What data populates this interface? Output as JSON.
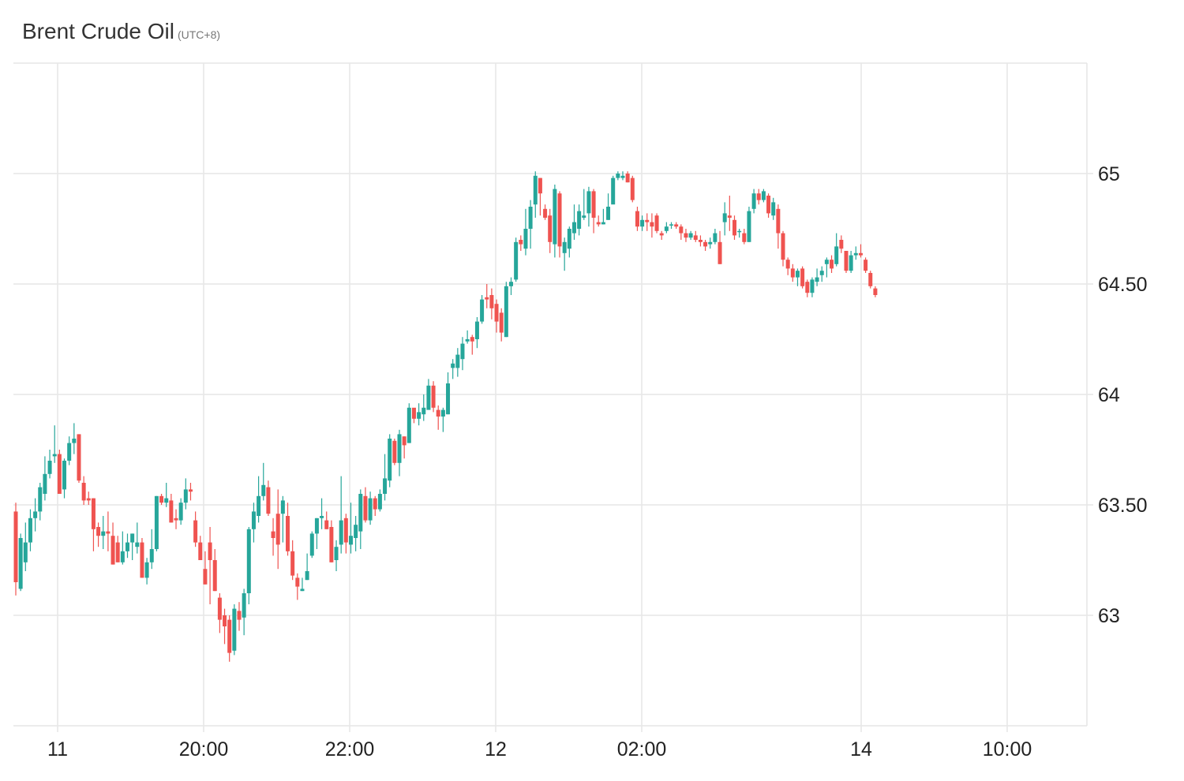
{
  "header": {
    "title": "Brent Crude Oil",
    "timezone": "(UTC+8)"
  },
  "colors": {
    "up": "#26a69a",
    "down": "#ef5350",
    "grid": "#e6e6e6",
    "text": "#222222"
  },
  "chart_data": {
    "type": "candlestick",
    "title": "Brent Crude Oil",
    "subtitle": "(UTC+8)",
    "xlabel": "",
    "ylabel": "",
    "y_ticks": [
      "63",
      "63.50",
      "64",
      "64.50",
      "65"
    ],
    "x_ticks": [
      "11",
      "20:00",
      "22:00",
      "12",
      "02:00",
      "14",
      "10:00"
    ],
    "ylim": [
      62.5,
      65.5
    ],
    "y_axis_position": "right",
    "grid": true,
    "candles": [
      [
        63.47,
        63.15,
        63.51,
        63.09
      ],
      [
        63.12,
        63.35,
        63.37,
        63.11
      ],
      [
        63.24,
        63.33,
        63.42,
        63.2
      ],
      [
        63.33,
        63.44,
        63.48,
        63.29
      ],
      [
        63.44,
        63.47,
        63.53,
        63.38
      ],
      [
        63.47,
        63.58,
        63.6,
        63.43
      ],
      [
        63.55,
        63.64,
        63.72,
        63.52
      ],
      [
        63.64,
        63.7,
        63.75,
        63.62
      ],
      [
        63.72,
        63.73,
        63.86,
        63.69
      ],
      [
        63.73,
        63.55,
        63.75,
        63.55
      ],
      [
        63.57,
        63.7,
        63.71,
        63.53
      ],
      [
        63.7,
        63.78,
        63.81,
        63.68
      ],
      [
        63.78,
        63.8,
        63.87,
        63.73
      ],
      [
        63.82,
        63.61,
        63.82,
        63.6
      ],
      [
        63.6,
        63.52,
        63.63,
        63.5
      ],
      [
        63.53,
        63.52,
        63.56,
        63.5
      ],
      [
        63.53,
        63.39,
        63.53,
        63.29
      ],
      [
        63.4,
        63.36,
        63.42,
        63.31
      ],
      [
        63.36,
        63.38,
        63.45,
        63.3
      ],
      [
        63.38,
        63.37,
        63.47,
        63.29
      ],
      [
        63.36,
        63.23,
        63.42,
        63.23
      ],
      [
        63.33,
        63.24,
        63.36,
        63.24
      ],
      [
        63.24,
        63.29,
        63.38,
        63.23
      ],
      [
        63.29,
        63.33,
        63.37,
        63.26
      ],
      [
        63.33,
        63.37,
        63.37,
        63.25
      ],
      [
        63.31,
        63.33,
        63.42,
        63.28
      ],
      [
        63.33,
        63.17,
        63.35,
        63.17
      ],
      [
        63.17,
        63.24,
        63.26,
        63.14
      ],
      [
        63.24,
        63.3,
        63.39,
        63.21
      ],
      [
        63.3,
        63.54,
        63.54,
        63.29
      ],
      [
        63.54,
        63.51,
        63.55,
        63.5
      ],
      [
        63.51,
        63.53,
        63.6,
        63.49
      ],
      [
        63.52,
        63.42,
        63.55,
        63.42
      ],
      [
        63.44,
        63.43,
        63.48,
        63.39
      ],
      [
        63.43,
        63.51,
        63.53,
        63.41
      ],
      [
        63.51,
        63.57,
        63.62,
        63.48
      ],
      [
        63.57,
        63.56,
        63.6,
        63.52
      ],
      [
        63.43,
        63.33,
        63.47,
        63.31
      ],
      [
        63.33,
        63.25,
        63.36,
        63.25
      ],
      [
        63.21,
        63.14,
        63.29,
        63.14
      ],
      [
        63.33,
        63.25,
        63.4,
        63.05
      ],
      [
        63.25,
        63.11,
        63.3,
        63.11
      ],
      [
        63.08,
        62.98,
        63.1,
        62.92
      ],
      [
        63.0,
        62.95,
        63.03,
        62.87
      ],
      [
        62.98,
        62.83,
        63.0,
        62.79
      ],
      [
        62.84,
        63.03,
        63.05,
        62.82
      ],
      [
        63.02,
        62.98,
        63.06,
        62.93
      ],
      [
        62.99,
        63.1,
        63.12,
        62.91
      ],
      [
        63.1,
        63.39,
        63.4,
        63.05
      ],
      [
        63.39,
        63.47,
        63.51,
        63.33
      ],
      [
        63.45,
        63.54,
        63.63,
        63.42
      ],
      [
        63.54,
        63.59,
        63.69,
        63.52
      ],
      [
        63.58,
        63.46,
        63.61,
        63.45
      ],
      [
        63.38,
        63.35,
        63.44,
        63.27
      ],
      [
        63.46,
        63.32,
        63.57,
        63.21
      ],
      [
        63.46,
        63.52,
        63.54,
        63.33
      ],
      [
        63.45,
        63.29,
        63.51,
        63.27
      ],
      [
        63.29,
        63.18,
        63.34,
        63.16
      ],
      [
        63.17,
        63.13,
        63.19,
        63.07
      ],
      [
        63.11,
        63.12,
        63.17,
        63.11
      ],
      [
        63.16,
        63.2,
        63.28,
        63.16
      ],
      [
        63.27,
        63.37,
        63.38,
        63.26
      ],
      [
        63.37,
        63.44,
        63.44,
        63.3
      ],
      [
        63.44,
        63.45,
        63.53,
        63.39
      ],
      [
        63.43,
        63.39,
        63.47,
        63.39
      ],
      [
        63.4,
        63.24,
        63.43,
        63.24
      ],
      [
        63.25,
        63.31,
        63.34,
        63.2
      ],
      [
        63.32,
        63.43,
        63.63,
        63.28
      ],
      [
        63.44,
        63.33,
        63.46,
        63.28
      ],
      [
        63.32,
        63.36,
        63.51,
        63.28
      ],
      [
        63.35,
        63.41,
        63.45,
        63.29
      ],
      [
        63.38,
        63.55,
        63.57,
        63.3
      ],
      [
        63.54,
        63.43,
        63.58,
        63.42
      ],
      [
        63.43,
        63.53,
        63.56,
        63.41
      ],
      [
        63.53,
        63.48,
        63.54,
        63.45
      ],
      [
        63.48,
        63.55,
        63.57,
        63.47
      ],
      [
        63.55,
        63.62,
        63.73,
        63.52
      ],
      [
        63.61,
        63.8,
        63.82,
        63.58
      ],
      [
        63.79,
        63.69,
        63.8,
        63.68
      ],
      [
        63.69,
        63.82,
        63.84,
        63.63
      ],
      [
        63.81,
        63.77,
        63.81,
        63.71
      ],
      [
        63.78,
        63.94,
        63.96,
        63.78
      ],
      [
        63.94,
        63.89,
        63.92,
        63.87
      ],
      [
        63.89,
        63.92,
        63.96,
        63.86
      ],
      [
        63.91,
        63.94,
        64.0,
        63.88
      ],
      [
        63.93,
        64.04,
        64.07,
        63.94
      ],
      [
        64.04,
        63.94,
        64.06,
        63.92
      ],
      [
        63.93,
        63.9,
        63.95,
        63.84
      ],
      [
        63.9,
        63.93,
        63.94,
        63.83
      ],
      [
        63.91,
        64.05,
        64.1,
        63.91
      ],
      [
        64.12,
        64.14,
        64.16,
        64.07
      ],
      [
        64.12,
        64.18,
        64.21,
        64.08
      ],
      [
        64.16,
        64.23,
        64.26,
        64.11
      ],
      [
        64.24,
        64.25,
        64.29,
        64.23
      ],
      [
        64.26,
        64.24,
        64.27,
        64.18
      ],
      [
        64.25,
        64.33,
        64.35,
        64.21
      ],
      [
        64.33,
        64.43,
        64.45,
        64.32
      ],
      [
        64.44,
        64.43,
        64.5,
        64.39
      ],
      [
        64.45,
        64.39,
        64.48,
        64.34
      ],
      [
        64.41,
        64.33,
        64.43,
        64.28
      ],
      [
        64.37,
        64.28,
        64.39,
        64.24
      ],
      [
        64.26,
        64.49,
        64.51,
        64.26
      ],
      [
        64.49,
        64.51,
        64.53,
        64.45
      ],
      [
        64.52,
        64.69,
        64.71,
        64.51
      ],
      [
        64.7,
        64.68,
        64.72,
        64.65
      ],
      [
        64.66,
        64.75,
        64.84,
        64.63
      ],
      [
        64.75,
        64.85,
        64.88,
        64.66
      ],
      [
        64.86,
        64.99,
        65.01,
        64.8
      ],
      [
        64.98,
        64.91,
        64.98,
        64.81
      ],
      [
        64.84,
        64.8,
        64.86,
        64.79
      ],
      [
        64.81,
        64.69,
        64.84,
        64.64
      ],
      [
        64.68,
        64.93,
        64.95,
        64.62
      ],
      [
        64.91,
        64.67,
        64.92,
        64.62
      ],
      [
        64.64,
        64.69,
        64.71,
        64.56
      ],
      [
        64.66,
        64.75,
        64.76,
        64.62
      ],
      [
        64.73,
        64.78,
        64.86,
        64.7
      ],
      [
        64.75,
        64.83,
        64.86,
        64.72
      ],
      [
        64.8,
        64.81,
        64.93,
        64.79
      ],
      [
        64.82,
        64.92,
        64.94,
        64.76
      ],
      [
        64.92,
        64.8,
        64.93,
        64.73
      ],
      [
        64.78,
        64.77,
        64.81,
        64.76
      ],
      [
        64.77,
        64.78,
        64.84,
        64.77
      ],
      [
        64.79,
        64.85,
        64.91,
        64.79
      ],
      [
        64.86,
        64.98,
        64.99,
        64.87
      ],
      [
        64.98,
        65.0,
        65.01,
        64.97
      ],
      [
        64.98,
        64.99,
        65.01,
        64.97
      ],
      [
        65.0,
        64.96,
        65.01,
        64.96
      ],
      [
        64.98,
        64.88,
        64.99,
        64.87
      ],
      [
        64.83,
        64.76,
        64.85,
        64.74
      ],
      [
        64.76,
        64.79,
        64.81,
        64.74
      ],
      [
        64.79,
        64.78,
        64.82,
        64.74
      ],
      [
        64.78,
        64.76,
        64.82,
        64.71
      ],
      [
        64.81,
        64.74,
        64.82,
        64.73
      ],
      [
        64.73,
        64.72,
        64.74,
        64.7
      ],
      [
        64.74,
        64.76,
        64.78,
        64.73
      ],
      [
        64.77,
        64.77,
        64.78,
        64.75
      ],
      [
        64.77,
        64.76,
        64.78,
        64.75
      ],
      [
        64.76,
        64.73,
        64.77,
        64.7
      ],
      [
        64.73,
        64.71,
        64.75,
        64.69
      ],
      [
        64.71,
        64.73,
        64.74,
        64.7
      ],
      [
        64.72,
        64.7,
        64.74,
        64.69
      ],
      [
        64.7,
        64.69,
        64.72,
        64.67
      ],
      [
        64.69,
        64.67,
        64.7,
        64.65
      ],
      [
        64.68,
        64.69,
        64.71,
        64.66
      ],
      [
        64.69,
        64.73,
        64.75,
        64.68
      ],
      [
        64.69,
        64.59,
        64.74,
        64.59
      ],
      [
        64.78,
        64.82,
        64.87,
        64.72
      ],
      [
        64.81,
        64.8,
        64.9,
        64.74
      ],
      [
        64.79,
        64.72,
        64.81,
        64.7
      ],
      [
        64.74,
        64.74,
        64.75,
        64.71
      ],
      [
        64.73,
        64.69,
        64.75,
        64.68
      ],
      [
        64.69,
        64.83,
        64.85,
        64.69
      ],
      [
        64.84,
        64.91,
        64.93,
        64.82
      ],
      [
        64.91,
        64.88,
        64.93,
        64.86
      ],
      [
        64.88,
        64.92,
        64.93,
        64.87
      ],
      [
        64.9,
        64.82,
        64.91,
        64.8
      ],
      [
        64.81,
        64.87,
        64.89,
        64.79
      ],
      [
        64.84,
        64.73,
        64.86,
        64.66
      ],
      [
        64.73,
        64.61,
        64.74,
        64.58
      ],
      [
        64.61,
        64.57,
        64.62,
        64.54
      ],
      [
        64.57,
        64.53,
        64.59,
        64.51
      ],
      [
        64.53,
        64.56,
        64.57,
        64.49
      ],
      [
        64.57,
        64.49,
        64.58,
        64.48
      ],
      [
        64.51,
        64.46,
        64.52,
        64.44
      ],
      [
        64.46,
        64.52,
        64.53,
        64.44
      ],
      [
        64.51,
        64.53,
        64.57,
        64.49
      ],
      [
        64.54,
        64.56,
        64.58,
        64.51
      ],
      [
        64.59,
        64.61,
        64.62,
        64.53
      ],
      [
        64.61,
        64.57,
        64.63,
        64.55
      ],
      [
        64.59,
        64.67,
        64.73,
        64.58
      ],
      [
        64.7,
        64.66,
        64.72,
        64.64
      ],
      [
        64.65,
        64.56,
        64.65,
        64.55
      ],
      [
        64.56,
        64.63,
        64.65,
        64.55
      ],
      [
        64.63,
        64.64,
        64.67,
        64.61
      ],
      [
        64.64,
        64.63,
        64.68,
        64.62
      ],
      [
        64.61,
        64.56,
        64.62,
        64.55
      ],
      [
        64.55,
        64.49,
        64.56,
        64.48
      ],
      [
        64.48,
        64.45,
        64.49,
        64.44
      ]
    ]
  }
}
